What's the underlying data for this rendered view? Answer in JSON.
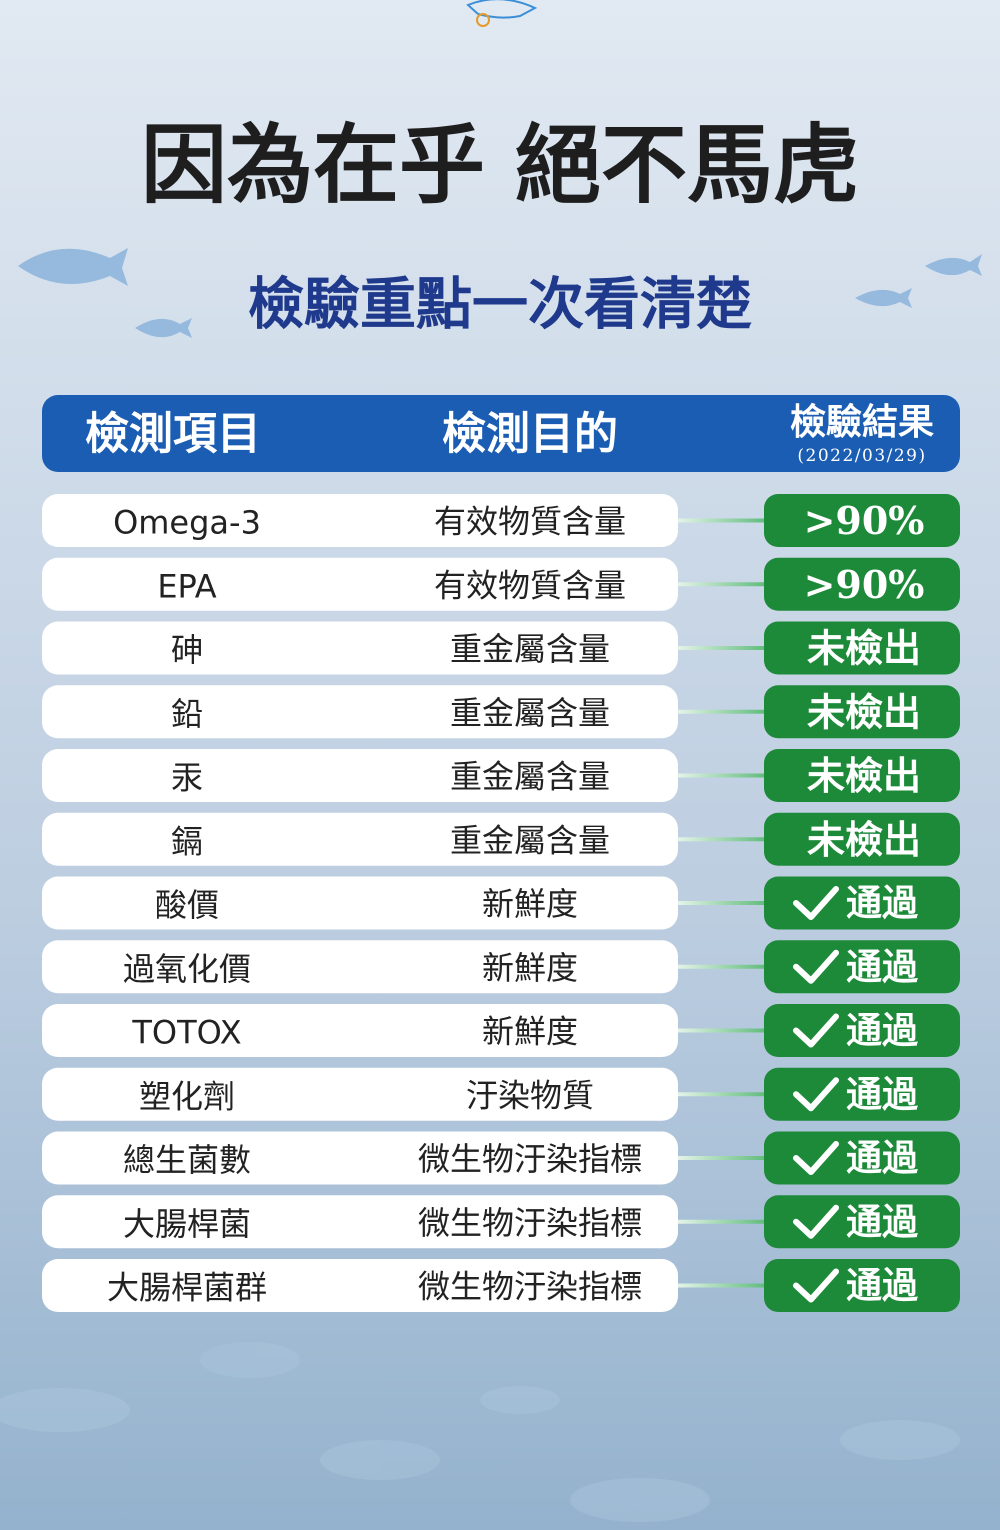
{
  "header": {
    "title": "因為在乎 絕不馬虎",
    "subtitle": "檢驗重點一次看清楚"
  },
  "table": {
    "columns": [
      "檢測項目",
      "檢測目的",
      "檢驗結果"
    ],
    "date": "(2022/03/29)",
    "rows": [
      [
        "Omega-3",
        "有效物質含量",
        ">90%"
      ],
      [
        "EPA",
        "有效物質含量",
        ">90%"
      ],
      [
        "砷",
        "重金屬含量",
        "未檢出"
      ],
      [
        "鉛",
        "重金屬含量",
        "未檢出"
      ],
      [
        "汞",
        "重金屬含量",
        "未檢出"
      ],
      [
        "鎘",
        "重金屬含量",
        "未檢出"
      ],
      [
        "酸價",
        "新鮮度",
        "通過"
      ],
      [
        "過氧化價",
        "新鮮度",
        "通過"
      ],
      [
        "TOTOX",
        "新鮮度",
        "通過"
      ],
      [
        "塑化劑",
        "汙染物質",
        "通過"
      ],
      [
        "總生菌數",
        "微生物汙染指標",
        "通過"
      ],
      [
        "大腸桿菌",
        "微生物汙染指標",
        "通過"
      ],
      [
        "大腸桿菌群",
        "微生物汙染指標",
        "通過"
      ]
    ]
  }
}
